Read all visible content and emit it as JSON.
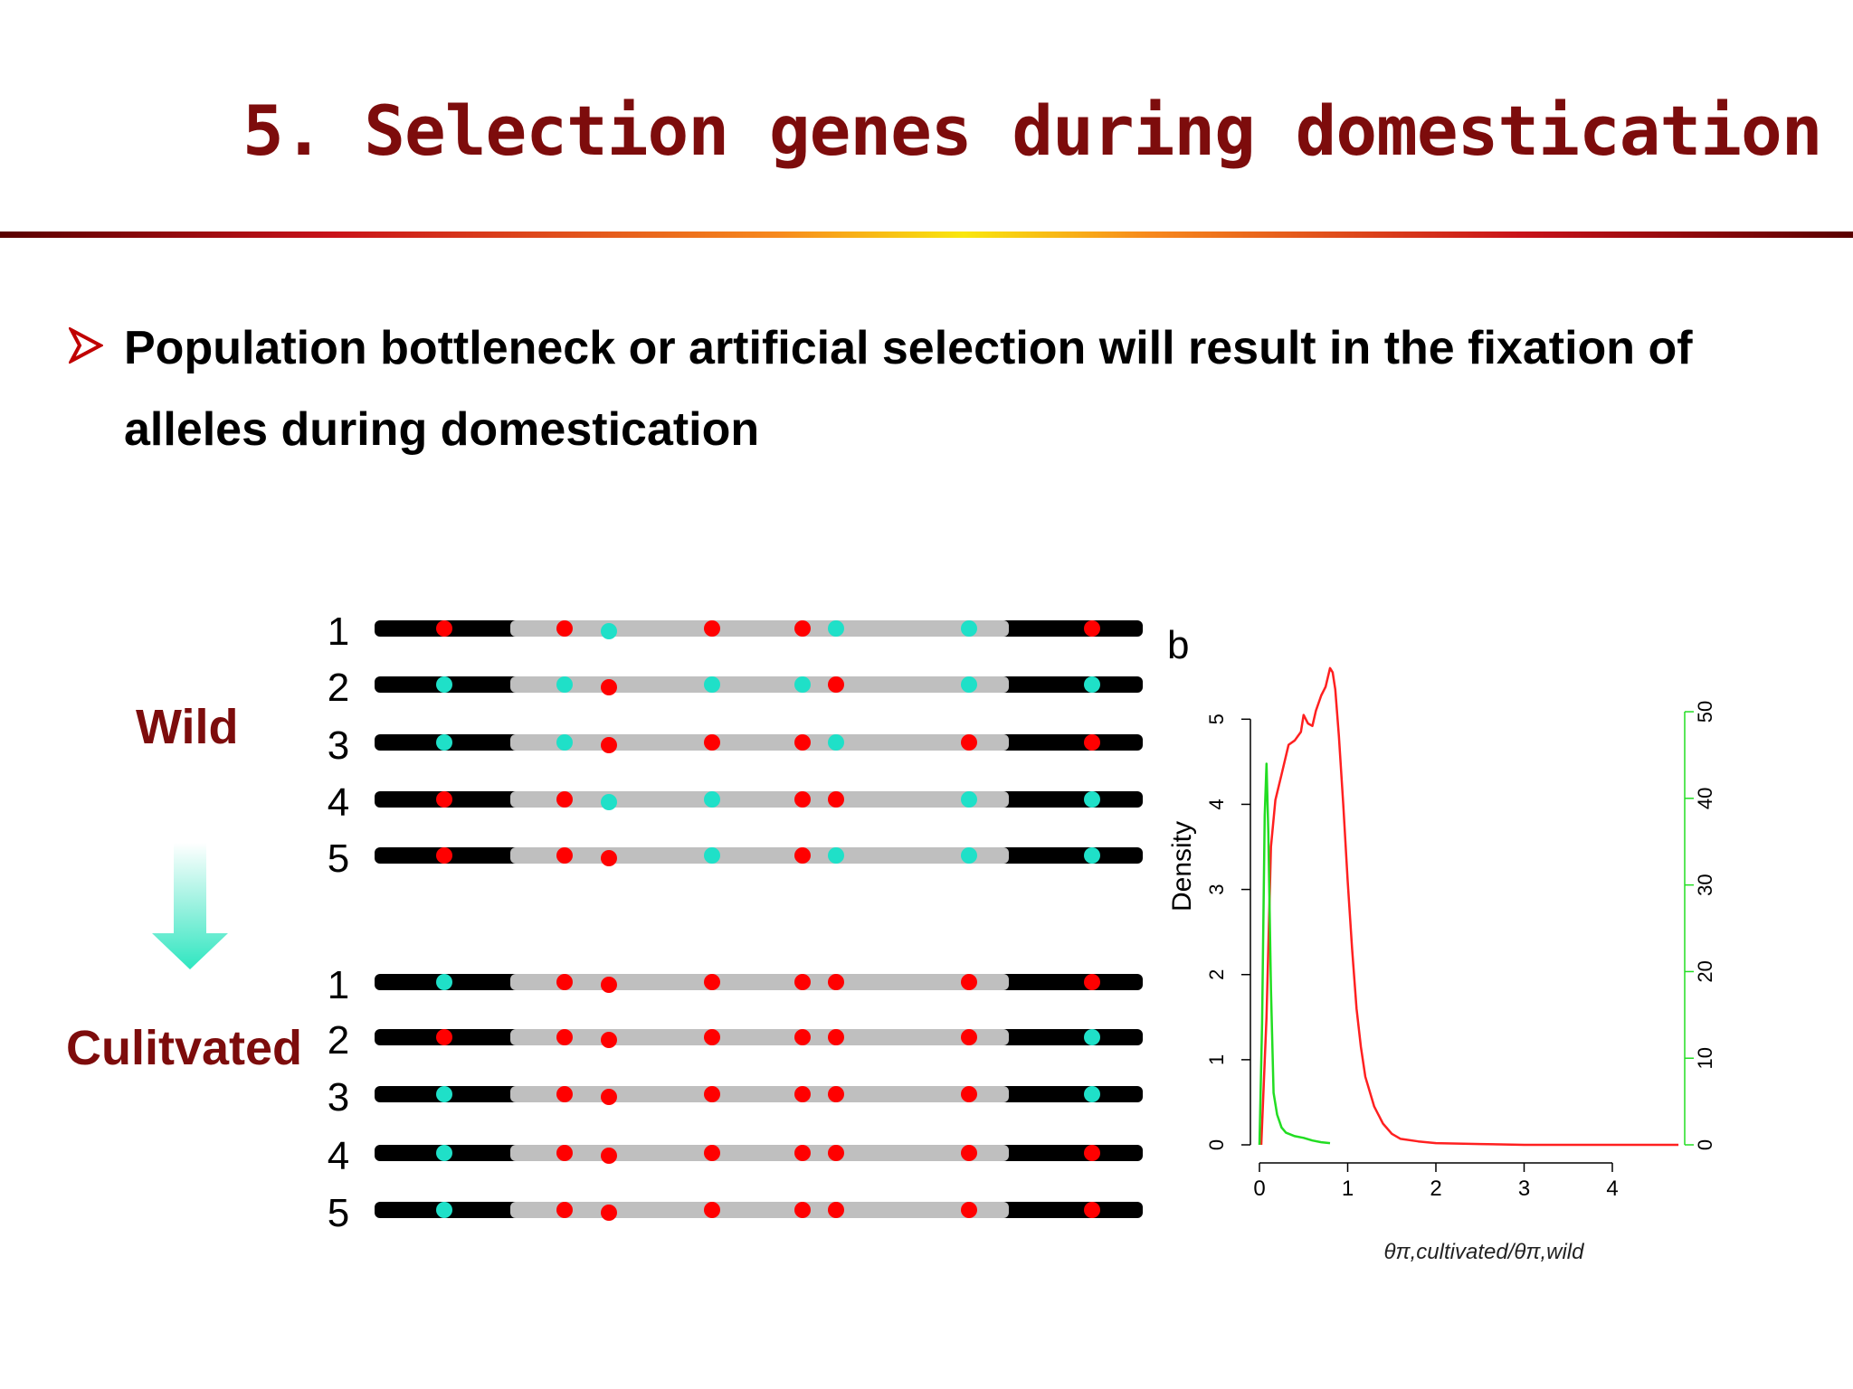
{
  "slide": {
    "title": "5. Selection genes during domestication",
    "bullet": "Population bottleneck or artificial selection will result in  the fixation of alleles during domestication"
  },
  "haplotypes": {
    "wild_label": "Wild",
    "cultivated_label": "Culitvated",
    "colors": {
      "red": "#ff0000",
      "cyan": "#1fe0c8",
      "black": "#000000",
      "gray": "#bfbfbf"
    },
    "wild_rows": [
      {
        "label": "1",
        "alleles": [
          "red",
          "red",
          "cyan",
          "red",
          "red",
          "cyan",
          "cyan",
          "red"
        ]
      },
      {
        "label": "2",
        "alleles": [
          "cyan",
          "cyan",
          "red",
          "cyan",
          "cyan",
          "red",
          "cyan",
          "cyan"
        ]
      },
      {
        "label": "3",
        "alleles": [
          "cyan",
          "cyan",
          "red",
          "red",
          "red",
          "cyan",
          "red",
          "red"
        ]
      },
      {
        "label": "4",
        "alleles": [
          "red",
          "red",
          "cyan",
          "cyan",
          "red",
          "red",
          "cyan",
          "cyan"
        ]
      },
      {
        "label": "5",
        "alleles": [
          "red",
          "red",
          "red",
          "cyan",
          "red",
          "cyan",
          "cyan",
          "cyan"
        ]
      }
    ],
    "cultivated_rows": [
      {
        "label": "1",
        "alleles": [
          "cyan",
          "red",
          "red",
          "red",
          "red",
          "red",
          "red",
          "red"
        ]
      },
      {
        "label": "2",
        "alleles": [
          "red",
          "red",
          "red",
          "red",
          "red",
          "red",
          "red",
          "cyan"
        ]
      },
      {
        "label": "3",
        "alleles": [
          "cyan",
          "red",
          "red",
          "red",
          "red",
          "red",
          "red",
          "cyan"
        ]
      },
      {
        "label": "4",
        "alleles": [
          "cyan",
          "red",
          "red",
          "red",
          "red",
          "red",
          "red",
          "red"
        ]
      },
      {
        "label": "5",
        "alleles": [
          "cyan",
          "red",
          "red",
          "red",
          "red",
          "red",
          "red",
          "red"
        ]
      }
    ]
  },
  "chart_data": {
    "type": "line",
    "panel_label": "b",
    "ylabel": "Density",
    "xlabel": "θπ,cultivated/θπ,wild",
    "xlim": [
      0,
      4.8
    ],
    "x_ticks": [
      "0",
      "1",
      "2",
      "3",
      "4"
    ],
    "ylim_left": [
      0,
      5.8
    ],
    "y_ticks_left": [
      "0",
      "1",
      "2",
      "3",
      "4",
      "5"
    ],
    "ylim_right": [
      0,
      57
    ],
    "y_ticks_right": [
      "0",
      "10",
      "20",
      "30",
      "40",
      "50"
    ],
    "series": [
      {
        "color": "#ff2020",
        "axis": "left",
        "x": [
          0.02,
          0.08,
          0.13,
          0.18,
          0.25,
          0.33,
          0.4,
          0.47,
          0.5,
          0.55,
          0.6,
          0.64,
          0.7,
          0.75,
          0.8,
          0.83,
          0.86,
          0.9,
          0.95,
          1.0,
          1.05,
          1.1,
          1.15,
          1.2,
          1.3,
          1.4,
          1.5,
          1.6,
          1.8,
          2.0,
          2.5,
          3.0,
          3.5,
          4.0,
          4.5,
          4.75
        ],
        "y": [
          0.0,
          1.5,
          3.5,
          4.05,
          4.35,
          4.7,
          4.75,
          4.85,
          5.05,
          4.95,
          4.92,
          5.1,
          5.28,
          5.38,
          5.6,
          5.55,
          5.35,
          4.8,
          4.0,
          3.1,
          2.3,
          1.6,
          1.15,
          0.8,
          0.45,
          0.25,
          0.13,
          0.07,
          0.04,
          0.02,
          0.01,
          0.0,
          0.0,
          0.0,
          0.0,
          0.0
        ]
      },
      {
        "color": "#22dd22",
        "axis": "right",
        "x": [
          0.0,
          0.03,
          0.06,
          0.08,
          0.1,
          0.13,
          0.16,
          0.2,
          0.25,
          0.3,
          0.4,
          0.5,
          0.6,
          0.7,
          0.8
        ],
        "y": [
          0.0,
          14.0,
          38.0,
          44.0,
          36.0,
          18.0,
          6.0,
          3.5,
          2.0,
          1.4,
          1.0,
          0.8,
          0.5,
          0.3,
          0.2
        ]
      }
    ]
  }
}
